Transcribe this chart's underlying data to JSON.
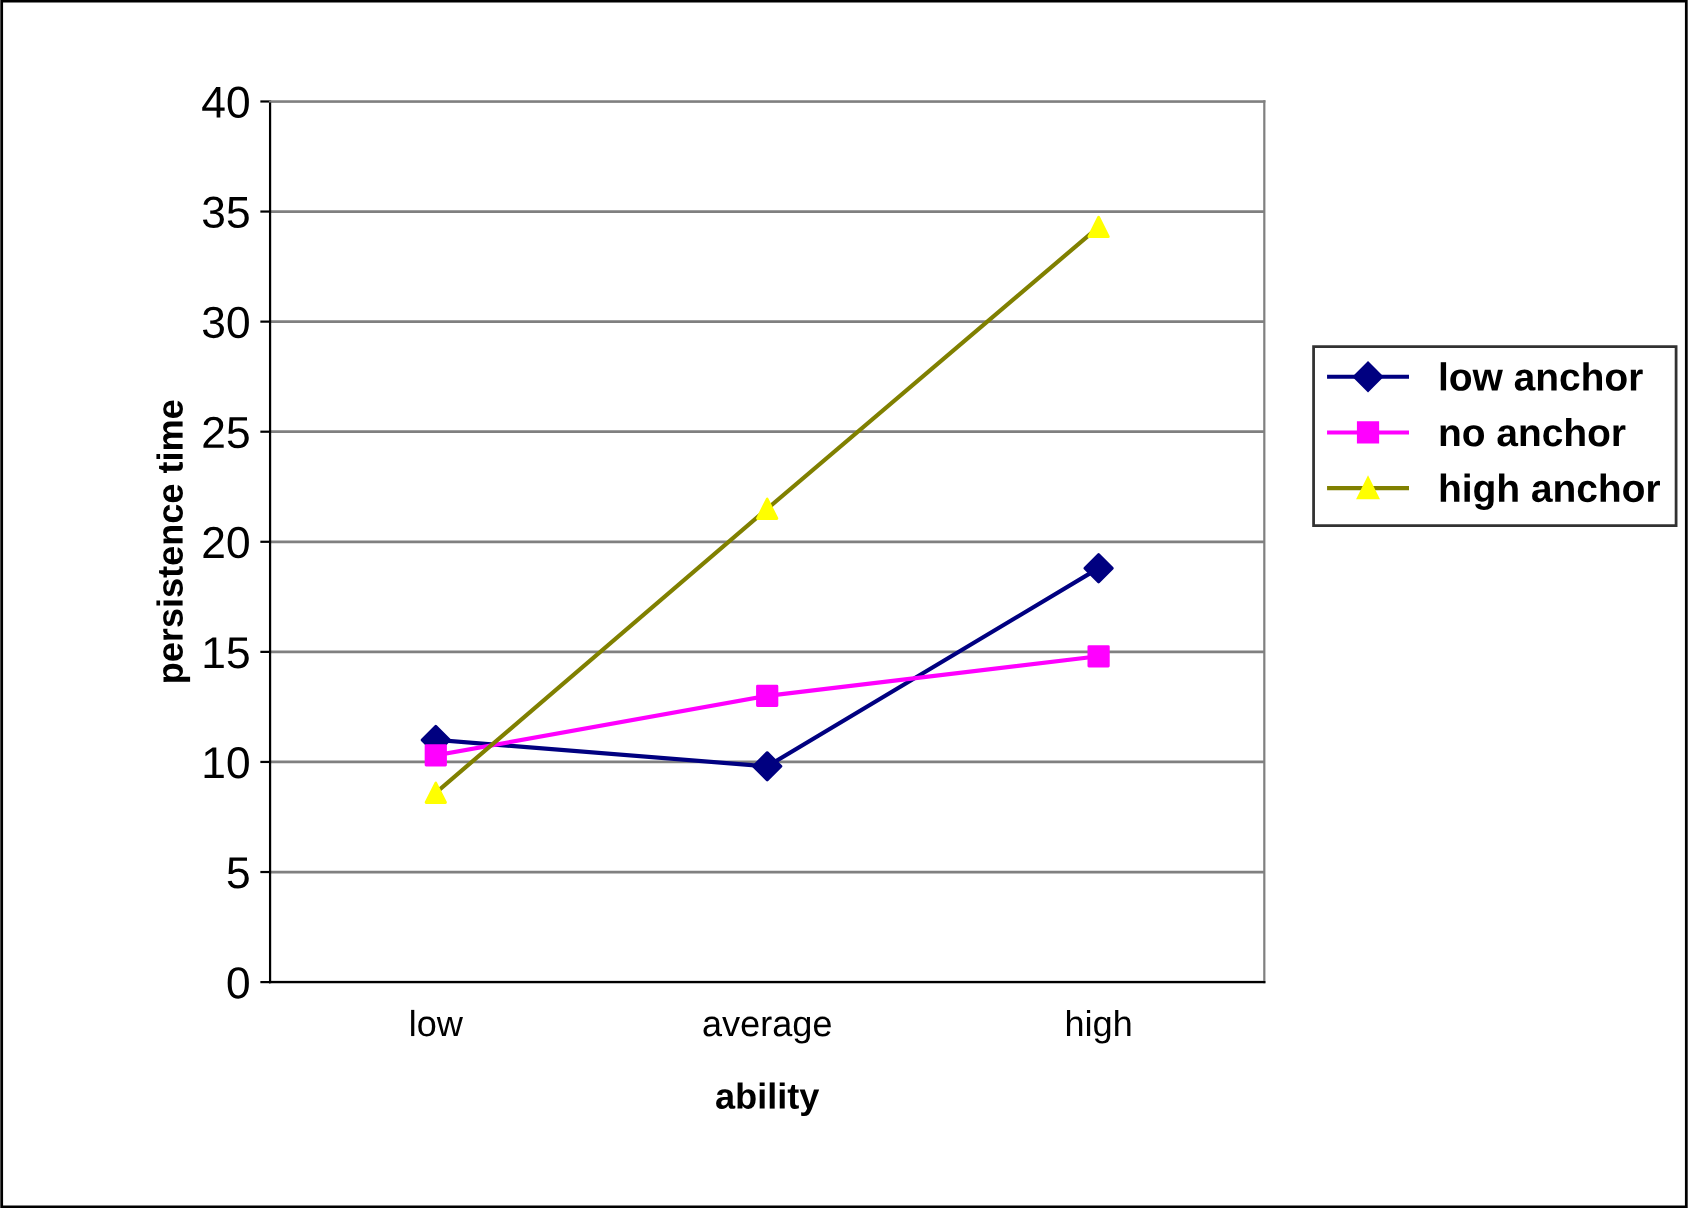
{
  "chart_data": {
    "type": "line",
    "xlabel": "ability",
    "ylabel": "persistence time",
    "categories": [
      "low",
      "average",
      "high"
    ],
    "series": [
      {
        "name": "low anchor",
        "color": "#000080",
        "marker": "diamond",
        "values": [
          11.0,
          9.8,
          18.8
        ]
      },
      {
        "name": "no anchor",
        "color": "#ff00ff",
        "marker": "square",
        "values": [
          10.3,
          13.0,
          14.8
        ]
      },
      {
        "name": "high anchor",
        "color": "#808000",
        "colors": [
          "#ffff00",
          "#ffff00",
          "#ffff00"
        ],
        "marker": "triangle",
        "values": [
          8.6,
          21.5,
          34.3
        ]
      }
    ],
    "ylim": [
      0,
      40
    ],
    "yticks": [
      0,
      5,
      10,
      15,
      20,
      25,
      30,
      35,
      40
    ],
    "grid": "y",
    "legend": "right",
    "line_style": "solid"
  }
}
